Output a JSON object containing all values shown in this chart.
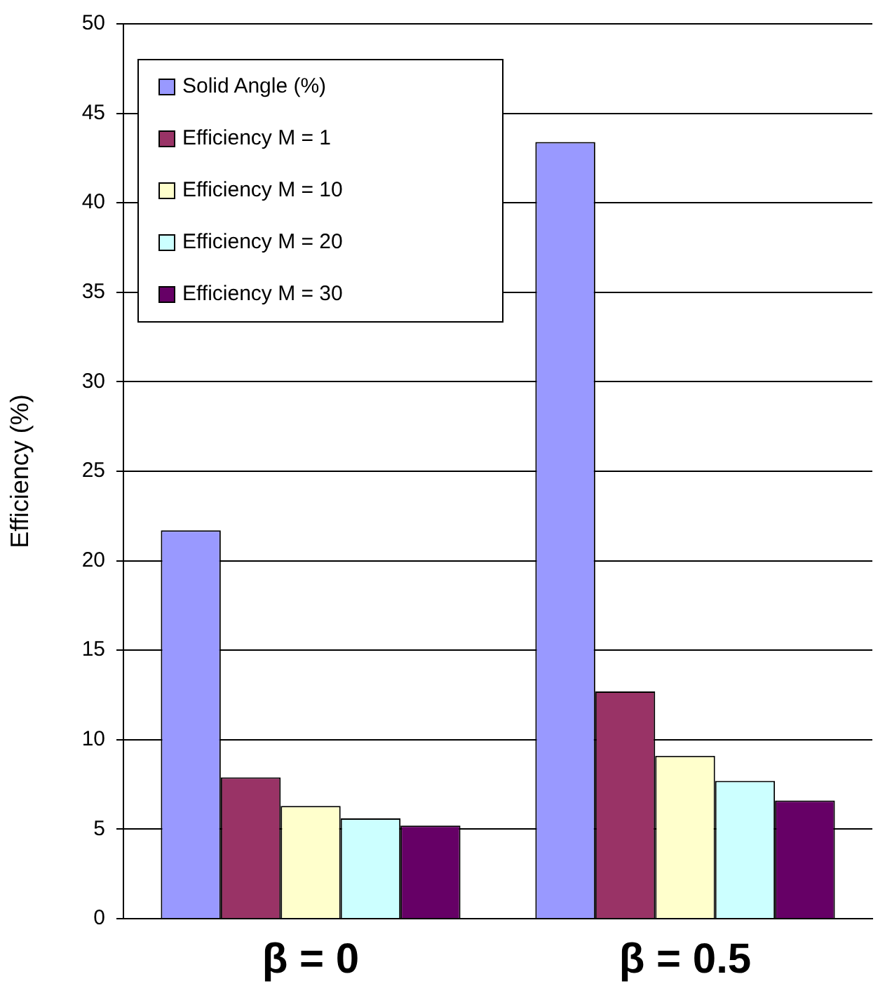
{
  "chart_data": {
    "type": "bar",
    "ylabel": "Efficiency (%)",
    "categories": [
      "β = 0",
      "β = 0.5"
    ],
    "series": [
      {
        "name": "Solid Angle (%)",
        "color": "#9999ff",
        "values": [
          21.7,
          43.4
        ]
      },
      {
        "name": "Efficiency M = 1",
        "color": "#993366",
        "values": [
          7.9,
          12.7
        ]
      },
      {
        "name": "Efficiency M = 10",
        "color": "#ffffcc",
        "values": [
          6.3,
          9.1
        ]
      },
      {
        "name": "Efficiency M = 20",
        "color": "#ccffff",
        "values": [
          5.6,
          7.7
        ]
      },
      {
        "name": "Efficiency M = 30",
        "color": "#660066",
        "values": [
          5.2,
          6.6
        ]
      }
    ],
    "ylim": [
      0,
      50
    ],
    "yticks": [
      0,
      5,
      10,
      15,
      20,
      25,
      30,
      35,
      40,
      45,
      50
    ],
    "grid": "y",
    "legend": "top left"
  }
}
